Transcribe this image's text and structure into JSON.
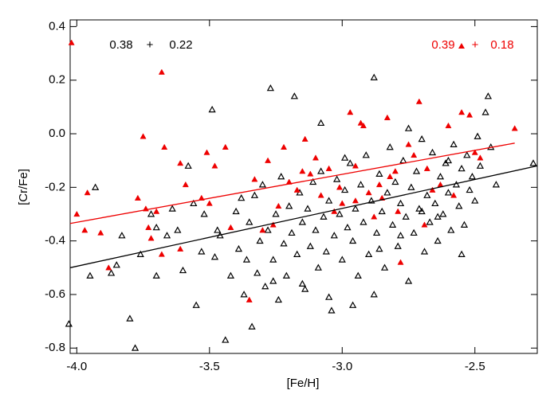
{
  "chart_data": {
    "type": "scatter",
    "xlabel": "[Fe/H]",
    "ylabel": "[Cr/Fe]",
    "xlim": [
      -4.025,
      -2.265
    ],
    "ylim": [
      -0.82,
      0.425
    ],
    "xticks": [
      {
        "value": -4,
        "label": "-4.0"
      },
      -3.5,
      {
        "value": -3,
        "label": "-3.0"
      },
      -2.5
    ],
    "yticks": [
      0.4,
      0.2,
      {
        "value": 0,
        "label": "0.0"
      },
      -0.2,
      -0.4,
      -0.6,
      -0.8
    ],
    "marker": "triangle",
    "series": [
      {
        "color": "#000000",
        "filled": false,
        "x": [
          -4.03,
          -3.95,
          -3.93,
          -3.87,
          -3.85,
          -3.83,
          -3.8,
          -3.78,
          -3.76,
          -3.72,
          -3.7,
          -3.66,
          -3.64,
          -3.62,
          -3.6,
          -3.58,
          -3.56,
          -3.55,
          -3.53,
          -3.52,
          -3.49,
          -3.48,
          -3.46,
          -3.44,
          -3.42,
          -3.4,
          -3.39,
          -3.37,
          -3.36,
          -3.35,
          -3.34,
          -3.33,
          -3.32,
          -3.31,
          -3.3,
          -3.29,
          -3.28,
          -3.27,
          -3.26,
          -3.25,
          -3.24,
          -3.23,
          -3.22,
          -3.21,
          -3.2,
          -3.19,
          -3.18,
          -3.17,
          -3.16,
          -3.15,
          -3.14,
          -3.13,
          -3.12,
          -3.11,
          -3.1,
          -3.09,
          -3.08,
          -3.07,
          -3.06,
          -3.05,
          -3.04,
          -3.03,
          -3.02,
          -3.01,
          -3.0,
          -2.99,
          -2.98,
          -2.97,
          -2.96,
          -2.95,
          -2.94,
          -2.93,
          -2.92,
          -2.91,
          -2.9,
          -2.89,
          -2.88,
          -2.87,
          -2.86,
          -2.85,
          -2.84,
          -2.83,
          -2.82,
          -2.81,
          -2.8,
          -2.79,
          -2.78,
          -2.77,
          -2.76,
          -2.75,
          -2.74,
          -2.73,
          -2.72,
          -2.71,
          -2.7,
          -2.69,
          -2.68,
          -2.67,
          -2.66,
          -2.65,
          -2.64,
          -2.63,
          -2.62,
          -2.61,
          -2.6,
          -2.59,
          -2.58,
          -2.57,
          -2.56,
          -2.55,
          -2.54,
          -2.53,
          -2.52,
          -2.51,
          -2.5,
          -2.49,
          -2.48,
          -2.46,
          -2.45,
          -2.44,
          -2.42,
          -2.28,
          -3.47,
          -3.05,
          -2.88,
          -2.96,
          -3.15,
          -2.7,
          -2.6,
          -2.75,
          -2.99,
          -3.08,
          -3.38,
          -3.7,
          -3.26,
          -2.86,
          -2.78,
          -2.64,
          -2.55
        ],
        "values": [
          -0.71,
          -0.53,
          -0.2,
          -0.52,
          -0.49,
          -0.38,
          -0.69,
          -0.8,
          -0.45,
          -0.3,
          -0.53,
          -0.38,
          -0.28,
          -0.36,
          -0.51,
          -0.12,
          -0.26,
          -0.64,
          -0.44,
          -0.3,
          0.09,
          -0.46,
          -0.38,
          -0.77,
          -0.53,
          -0.29,
          -0.43,
          -0.6,
          -0.47,
          -0.33,
          -0.72,
          -0.23,
          -0.52,
          -0.4,
          -0.19,
          -0.57,
          -0.36,
          0.17,
          -0.47,
          -0.3,
          -0.62,
          -0.16,
          -0.41,
          -0.53,
          -0.27,
          -0.37,
          0.14,
          -0.45,
          -0.22,
          -0.33,
          -0.58,
          -0.28,
          -0.42,
          -0.18,
          -0.36,
          -0.5,
          -0.14,
          -0.31,
          -0.44,
          -0.25,
          -0.66,
          -0.38,
          -0.17,
          -0.3,
          -0.47,
          -0.21,
          -0.35,
          -0.11,
          -0.4,
          -0.28,
          -0.53,
          -0.19,
          -0.33,
          -0.08,
          -0.45,
          -0.25,
          0.21,
          -0.37,
          -0.15,
          -0.29,
          -0.5,
          -0.22,
          -0.05,
          -0.34,
          -0.18,
          -0.42,
          -0.26,
          -0.1,
          -0.31,
          -0.55,
          -0.2,
          -0.37,
          -0.14,
          -0.28,
          -0.02,
          -0.44,
          -0.23,
          -0.33,
          -0.07,
          -0.26,
          -0.4,
          -0.16,
          -0.3,
          -0.11,
          -0.22,
          -0.36,
          -0.04,
          -0.19,
          -0.27,
          -0.13,
          -0.34,
          -0.08,
          -0.21,
          -0.16,
          -0.25,
          -0.01,
          -0.12,
          0.08,
          0.14,
          -0.05,
          -0.19,
          -0.11,
          -0.36,
          -0.61,
          -0.6,
          -0.64,
          -0.56,
          -0.29,
          -0.1,
          0.02,
          -0.09,
          0.04,
          -0.24,
          -0.35,
          -0.55,
          -0.43,
          -0.38,
          -0.31,
          -0.45
        ]
      },
      {
        "color": "#ee0000",
        "filled": true,
        "x": [
          -4.02,
          -4.0,
          -3.97,
          -3.96,
          -3.91,
          -3.88,
          -3.77,
          -3.75,
          -3.74,
          -3.73,
          -3.72,
          -3.7,
          -3.68,
          -3.68,
          -3.67,
          -3.61,
          -3.61,
          -3.59,
          -3.53,
          -3.51,
          -3.5,
          -3.48,
          -3.44,
          -3.42,
          -3.33,
          -3.35,
          -3.3,
          -3.28,
          -3.26,
          -3.24,
          -3.22,
          -3.2,
          -3.17,
          -3.14,
          -3.12,
          -3.1,
          -3.08,
          -3.05,
          -3.03,
          -3.01,
          -2.97,
          -2.95,
          -2.93,
          -2.92,
          -2.9,
          -2.88,
          -2.86,
          -2.85,
          -2.83,
          -2.82,
          -2.8,
          -2.79,
          -2.78,
          -2.75,
          -2.73,
          -2.71,
          -2.69,
          -2.66,
          -2.63,
          -2.6,
          -2.58,
          -2.55,
          -2.52,
          -2.5,
          -2.48,
          -2.35,
          -3.0,
          -2.68,
          -3.15,
          -2.95
        ],
        "values": [
          0.34,
          -0.3,
          -0.36,
          -0.22,
          -0.37,
          -0.5,
          -0.24,
          -0.01,
          -0.28,
          -0.35,
          -0.39,
          -0.29,
          0.23,
          -0.45,
          -0.05,
          -0.11,
          -0.43,
          -0.19,
          -0.24,
          -0.07,
          -0.26,
          -0.12,
          -0.05,
          -0.35,
          -0.17,
          -0.62,
          -0.36,
          -0.1,
          -0.34,
          -0.27,
          -0.05,
          -0.18,
          -0.21,
          -0.02,
          -0.15,
          -0.09,
          -0.23,
          -0.13,
          -0.29,
          -0.2,
          0.08,
          -0.12,
          0.04,
          0.03,
          -0.22,
          -0.31,
          -0.19,
          -0.24,
          0.06,
          -0.16,
          -0.14,
          -0.29,
          -0.48,
          -0.04,
          -0.08,
          0.12,
          -0.34,
          -0.21,
          -0.19,
          0.03,
          -0.23,
          0.08,
          0.07,
          -0.07,
          -0.09,
          0.02,
          -0.26,
          -0.13,
          -0.14,
          -0.25
        ]
      }
    ],
    "fit_lines": [
      {
        "color": "#000000",
        "x": [
          -4.025,
          -2.265
        ],
        "values": [
          -0.5,
          -0.12
        ]
      },
      {
        "color": "#ee0000",
        "x": [
          -4.025,
          -2.35
        ],
        "values": [
          -0.335,
          -0.035
        ]
      }
    ],
    "annotations": [
      {
        "color": "#000000",
        "texts": [
          "0.38",
          "+",
          "0.22"
        ]
      },
      {
        "color": "#ee0000",
        "texts": [
          "0.39",
          "+",
          "0.18"
        ]
      }
    ]
  }
}
